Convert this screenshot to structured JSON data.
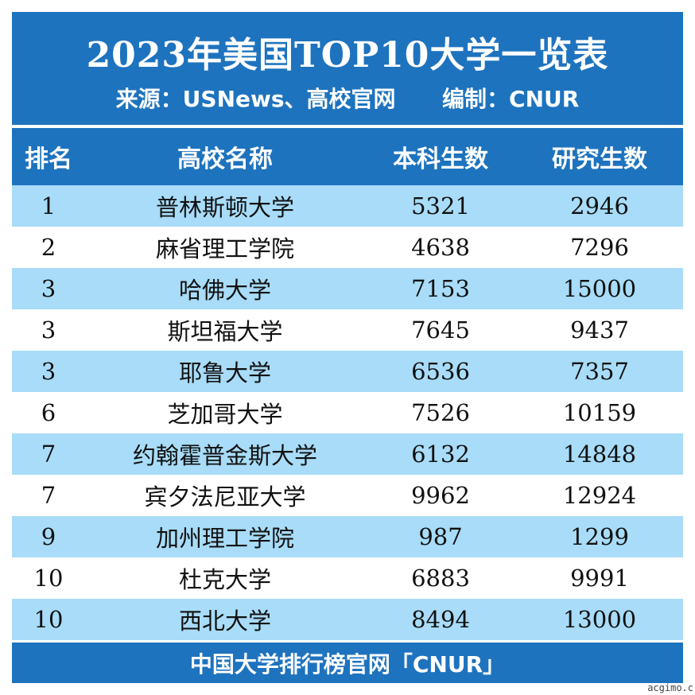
{
  "header": {
    "title": "2023年美国TOP10大学一览表",
    "subtitle": "来源：USNews、高校官网      编制：CNUR"
  },
  "columns": [
    "排名",
    "高校名称",
    "本科生数",
    "研究生数"
  ],
  "rows": [
    {
      "rank": "1",
      "name": "普林斯顿大学",
      "undergrad": "5321",
      "grad": "2946"
    },
    {
      "rank": "2",
      "name": "麻省理工学院",
      "undergrad": "4638",
      "grad": "7296"
    },
    {
      "rank": "3",
      "name": "哈佛大学",
      "undergrad": "7153",
      "grad": "15000"
    },
    {
      "rank": "3",
      "name": "斯坦福大学",
      "undergrad": "7645",
      "grad": "9437"
    },
    {
      "rank": "3",
      "name": "耶鲁大学",
      "undergrad": "6536",
      "grad": "7357"
    },
    {
      "rank": "6",
      "name": "芝加哥大学",
      "undergrad": "7526",
      "grad": "10159"
    },
    {
      "rank": "7",
      "name": "约翰霍普金斯大学",
      "undergrad": "6132",
      "grad": "14848"
    },
    {
      "rank": "7",
      "name": "宾夕法尼亚大学",
      "undergrad": "9962",
      "grad": "12924"
    },
    {
      "rank": "9",
      "name": "加州理工学院",
      "undergrad": "987",
      "grad": "1299"
    },
    {
      "rank": "10",
      "name": "杜克大学",
      "undergrad": "6883",
      "grad": "9991"
    },
    {
      "rank": "10",
      "name": "西北大学",
      "undergrad": "8494",
      "grad": "13000"
    }
  ],
  "footer": "中国大学排行榜官网「CNUR」",
  "watermark": "acgimo.c",
  "colors": {
    "header_bg": "#1e73be",
    "alt_row": "#a8dcf8",
    "text": "#111111"
  }
}
